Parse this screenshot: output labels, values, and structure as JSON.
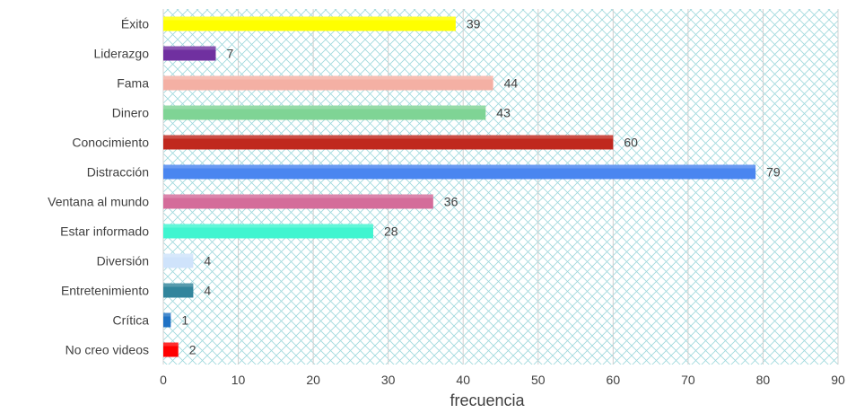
{
  "chart_data": {
    "type": "bar",
    "orientation": "horizontal",
    "categories": [
      "Éxito",
      "Liderazgo",
      "Fama",
      "Dinero",
      "Conocimiento",
      "Distracción",
      "Ventana al mundo",
      "Estar informado",
      "Diversión",
      "Entretenimiento",
      "Crítica",
      "No creo videos"
    ],
    "values": [
      39,
      7,
      44,
      43,
      60,
      79,
      36,
      28,
      4,
      4,
      1,
      2
    ],
    "colors": [
      "#ffff00",
      "#7030a0",
      "#f4b0a4",
      "#7fd495",
      "#c0281e",
      "#4a86f0",
      "#d46c9a",
      "#40f5d0",
      "#cfe3fb",
      "#31859c",
      "#1f72c4",
      "#ff0000"
    ],
    "xlabel": "frecuencia",
    "ylabel": "",
    "xlim": [
      0,
      90
    ],
    "xticks": [
      0,
      10,
      20,
      30,
      40,
      50,
      60,
      70,
      80,
      90
    ],
    "grid": true,
    "background_pattern": "teal crosshatch",
    "show_data_labels": true
  }
}
